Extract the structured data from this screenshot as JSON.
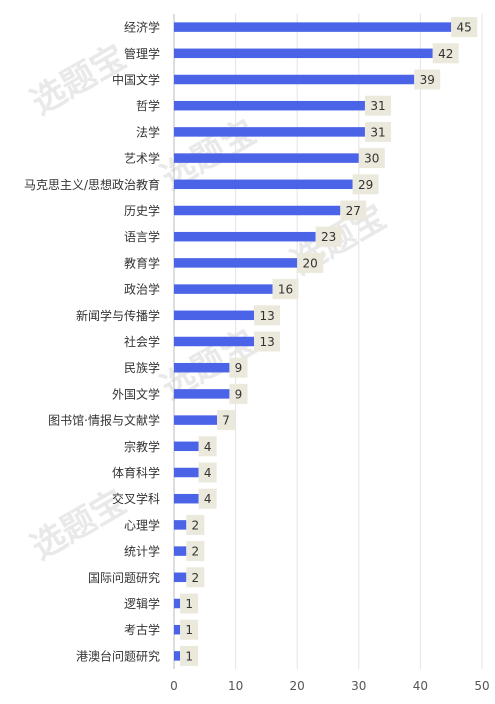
{
  "chart_data": {
    "type": "bar",
    "orientation": "horizontal",
    "categories": [
      "经济学",
      "管理学",
      "中国文学",
      "哲学",
      "法学",
      "艺术学",
      "马克思主义/思想政治教育",
      "历史学",
      "语言学",
      "教育学",
      "政治学",
      "新闻学与传播学",
      "社会学",
      "民族学",
      "外国文学",
      "图书馆·情报与文献学",
      "宗教学",
      "体育科学",
      "交叉学科",
      "心理学",
      "统计学",
      "国际问题研究",
      "逻辑学",
      "考古学",
      "港澳台问题研究"
    ],
    "values": [
      45,
      42,
      39,
      31,
      31,
      30,
      29,
      27,
      23,
      20,
      16,
      13,
      13,
      9,
      9,
      7,
      4,
      4,
      4,
      2,
      2,
      2,
      1,
      1,
      1
    ],
    "title": "",
    "xlabel": "",
    "ylabel": "",
    "xlim": [
      0,
      50
    ],
    "xticks": [
      0,
      10,
      20,
      30,
      40,
      50
    ],
    "grid": "vertical",
    "legend": "none",
    "data_labels": true,
    "colors": {
      "bar": "#4a63e7",
      "label_background": "#ebe8dc",
      "gridline": "#e3e3e3",
      "axis": "#bbbbbb"
    }
  },
  "watermark": "选题宝"
}
